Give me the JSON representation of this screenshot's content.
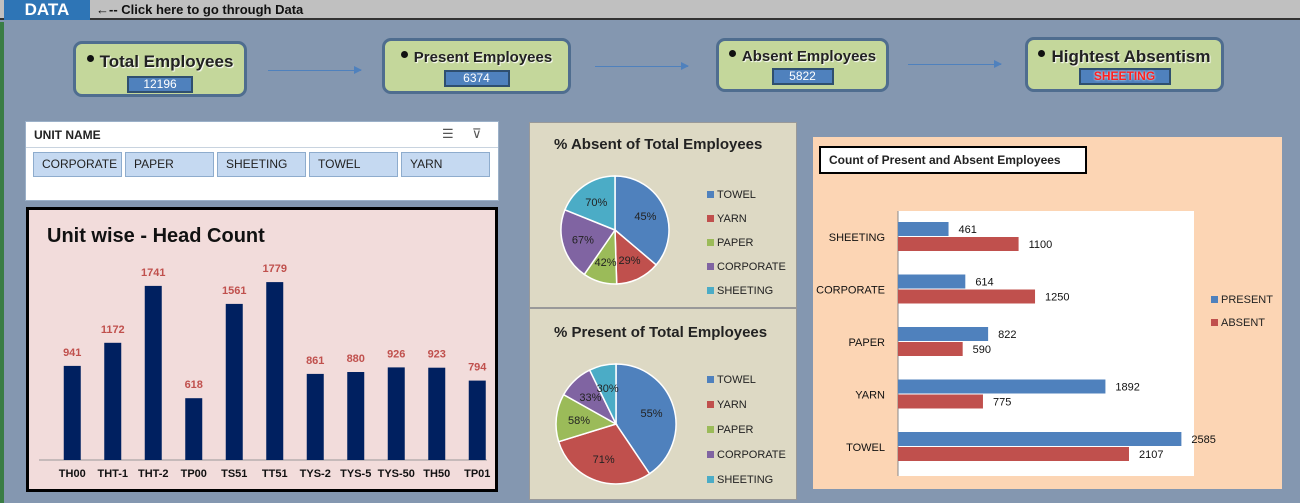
{
  "topbar": {
    "data_button": "DATA",
    "hint": "←-- Click here to go through Data"
  },
  "kpis": {
    "total": {
      "label": "Total Employees",
      "value": "12196"
    },
    "present": {
      "label": "Present Employees",
      "value": "6374"
    },
    "absent": {
      "label": "Absent Employees",
      "value": "5822"
    },
    "highest": {
      "label": "Hightest Absentism",
      "value": "SHEETING"
    }
  },
  "slicer": {
    "title": "UNIT NAME",
    "items": [
      "CORPORATE",
      "PAPER",
      "SHEETING",
      "TOWEL",
      "YARN"
    ]
  },
  "colors": {
    "towel": "#4f81bd",
    "yarn": "#c0504d",
    "paper": "#9bbb59",
    "corporate": "#8064a2",
    "sheeting": "#4bacc6",
    "navy_bar": "#002060",
    "label_red": "#c0504d"
  },
  "chart_data": [
    {
      "type": "bar",
      "title": "Unit wise - Head Count",
      "categories": [
        "TH00",
        "THT-1",
        "THT-2",
        "TP00",
        "TS51",
        "TT51",
        "TYS-2",
        "TYS-5",
        "TYS-50",
        "TH50",
        "TP01"
      ],
      "values": [
        941,
        1172,
        1741,
        618,
        1561,
        1779,
        861,
        880,
        926,
        923,
        794
      ]
    },
    {
      "type": "pie",
      "title": "% Absent of Total Employees",
      "labels": [
        "TOWEL",
        "YARN",
        "PAPER",
        "CORPORATE",
        "SHEETING"
      ],
      "percent_labels": [
        "45%",
        "29%",
        "42%",
        "67%",
        "70%"
      ],
      "values": [
        2107,
        775,
        590,
        1250,
        1100
      ]
    },
    {
      "type": "pie",
      "title": "% Present of Total Employees",
      "labels": [
        "TOWEL",
        "YARN",
        "PAPER",
        "CORPORATE",
        "SHEETING"
      ],
      "percent_labels": [
        "55%",
        "71%",
        "58%",
        "33%",
        "30%"
      ],
      "values": [
        2585,
        1892,
        822,
        614,
        461
      ]
    },
    {
      "type": "bar",
      "orientation": "horizontal",
      "title": "Count of Present and Absent Employees",
      "categories": [
        "SHEETING",
        "CORPORATE",
        "PAPER",
        "YARN",
        "TOWEL"
      ],
      "series": [
        {
          "name": "PRESENT",
          "values": [
            461,
            614,
            822,
            1892,
            2585
          ]
        },
        {
          "name": "ABSENT",
          "values": [
            1100,
            1250,
            590,
            775,
            2107
          ]
        }
      ],
      "xlim": [
        0,
        2700
      ],
      "legend": "right"
    }
  ]
}
